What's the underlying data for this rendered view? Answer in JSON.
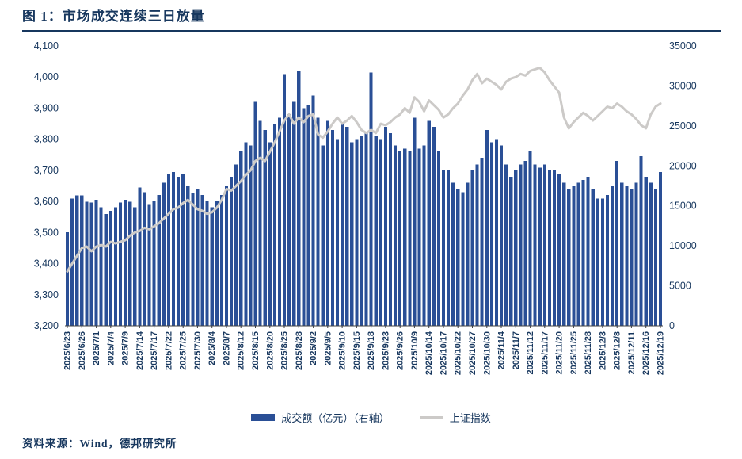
{
  "page": {
    "title": "图 1：市场成交连续三日放量",
    "source": "资料来源：Wind，德邦研究所"
  },
  "chart_data": {
    "type": "combo",
    "title": "图 1：市场成交连续三日放量",
    "grid": false,
    "legend_position": "bottom",
    "left_axis": {
      "min": 3200,
      "max": 4100,
      "ticks": [
        {
          "label": "3,200",
          "value": 3200
        },
        {
          "label": "3,300",
          "value": 3300
        },
        {
          "label": "3,400",
          "value": 3400
        },
        {
          "label": "3,500",
          "value": 3500
        },
        {
          "label": "3,600",
          "value": 3600
        },
        {
          "label": "3,700",
          "value": 3700
        },
        {
          "label": "3,800",
          "value": 3800
        },
        {
          "label": "3,900",
          "value": 3900
        },
        {
          "label": "4,000",
          "value": 4000
        },
        {
          "label": "4,100",
          "value": 4100
        }
      ]
    },
    "right_axis": {
      "min": 0,
      "max": 35000,
      "ticks": [
        {
          "label": "0",
          "value": 0
        },
        {
          "label": "5000",
          "value": 5000
        },
        {
          "label": "10000",
          "value": 10000
        },
        {
          "label": "15000",
          "value": 15000
        },
        {
          "label": "20000",
          "value": 20000
        },
        {
          "label": "25000",
          "value": 25000
        },
        {
          "label": "30000",
          "value": 30000
        },
        {
          "label": "35000",
          "value": 35000
        }
      ]
    },
    "x_tick_every": 3,
    "x_tick_labels": [
      "2025/6/23",
      "2025/6/26",
      "2025/7/1",
      "2025/7/4",
      "2025/7/9",
      "2025/7/14",
      "2025/7/17",
      "2025/7/22",
      "2025/7/25",
      "2025/7/30",
      "2025/8/4",
      "2025/8/7",
      "2025/8/12",
      "2025/8/15",
      "2025/8/20",
      "2025/8/25",
      "2025/8/28",
      "2025/9/2",
      "2025/9/5",
      "2025/9/10",
      "2025/9/15",
      "2025/9/18",
      "2025/9/23",
      "2025/9/26",
      "2025/10/9",
      "2025/10/14",
      "2025/10/17",
      "2025/10/22",
      "2025/10/27",
      "2025/10/30",
      "2025/11/4",
      "2025/11/7",
      "2025/11/12",
      "2025/11/17",
      "2025/11/20",
      "2025/11/25",
      "2025/11/28",
      "2025/12/3",
      "2025/12/8",
      "2025/12/11",
      "2025/12/16",
      "2025/12/19"
    ],
    "series": [
      {
        "name": "成交额（亿元）（右轴）",
        "type": "bar",
        "axis": "right",
        "color": "#2A4F96",
        "values": [
          11700,
          15900,
          16300,
          16300,
          15500,
          15400,
          15750,
          14800,
          14000,
          14400,
          14800,
          15400,
          15750,
          15500,
          14800,
          17300,
          16700,
          15200,
          15550,
          16350,
          17900,
          19050,
          19250,
          18650,
          19050,
          17500,
          16550,
          17100,
          16350,
          15550,
          14800,
          15550,
          16350,
          17500,
          18650,
          20200,
          21800,
          22950,
          22550,
          28000,
          25650,
          24500,
          22950,
          25250,
          26050,
          31500,
          26450,
          28000,
          31900,
          27200,
          27600,
          28800,
          26050,
          22550,
          25650,
          24500,
          23350,
          25250,
          24900,
          22950,
          23350,
          23700,
          24100,
          31700,
          23700,
          23350,
          24900,
          24100,
          22550,
          21800,
          22150,
          21800,
          26050,
          22150,
          22550,
          25650,
          24900,
          21800,
          19450,
          19450,
          17900,
          17100,
          16700,
          17900,
          19450,
          20200,
          21000,
          24500,
          22950,
          23350,
          22550,
          20200,
          18650,
          19450,
          20200,
          20600,
          21800,
          20200,
          19800,
          20200,
          19450,
          19450,
          19050,
          17900,
          17100,
          17500,
          17900,
          18250,
          18650,
          17100,
          15900,
          15900,
          16350,
          17500,
          20600,
          17900,
          17500,
          17100,
          17900,
          21200,
          18650,
          17900,
          17100,
          19250
        ]
      },
      {
        "name": "上证指数",
        "type": "line",
        "axis": "left",
        "color": "#CCCAC8",
        "values": [
          3375,
          3400,
          3425,
          3450,
          3455,
          3440,
          3455,
          3460,
          3455,
          3470,
          3465,
          3470,
          3475,
          3490,
          3500,
          3505,
          3515,
          3510,
          3520,
          3530,
          3545,
          3560,
          3575,
          3580,
          3595,
          3605,
          3590,
          3575,
          3570,
          3560,
          3565,
          3580,
          3605,
          3640,
          3635,
          3650,
          3665,
          3685,
          3700,
          3730,
          3740,
          3730,
          3760,
          3790,
          3825,
          3860,
          3880,
          3850,
          3870,
          3855,
          3875,
          3880,
          3815,
          3805,
          3825,
          3850,
          3870,
          3850,
          3860,
          3875,
          3855,
          3830,
          3820,
          3830,
          3820,
          3850,
          3845,
          3855,
          3870,
          3880,
          3900,
          3885,
          3935,
          3920,
          3890,
          3925,
          3910,
          3895,
          3870,
          3880,
          3900,
          3915,
          3940,
          3960,
          3990,
          4010,
          3980,
          3995,
          3985,
          3975,
          3960,
          3985,
          3995,
          4000,
          4010,
          4005,
          4020,
          4025,
          4030,
          4015,
          3990,
          3970,
          3950,
          3870,
          3835,
          3855,
          3870,
          3885,
          3875,
          3860,
          3875,
          3890,
          3905,
          3900,
          3915,
          3905,
          3890,
          3880,
          3865,
          3845,
          3835,
          3880,
          3905,
          3915
        ]
      }
    ]
  }
}
